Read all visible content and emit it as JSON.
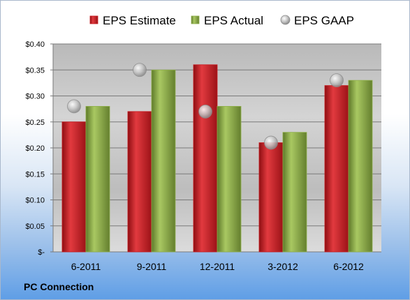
{
  "company": "PC Connection",
  "colors": {
    "estimate": "#c8191f",
    "actual": "#8fb04a",
    "gaap": "#a8a8a8"
  },
  "chart_data": {
    "type": "bar",
    "categories": [
      "6-2011",
      "9-2011",
      "12-2011",
      "3-2012",
      "6-2012"
    ],
    "series": [
      {
        "name": "EPS Estimate",
        "kind": "bar",
        "values": [
          0.25,
          0.27,
          0.36,
          0.21,
          0.32
        ]
      },
      {
        "name": "EPS Actual",
        "kind": "bar",
        "values": [
          0.28,
          0.35,
          0.28,
          0.23,
          0.33
        ]
      },
      {
        "name": "EPS GAAP",
        "kind": "marker",
        "values": [
          0.28,
          0.35,
          0.27,
          0.21,
          0.33
        ]
      }
    ],
    "y_ticks": [
      0.4,
      0.35,
      0.3,
      0.25,
      0.2,
      0.15,
      0.1,
      0.05,
      0
    ],
    "y_tick_labels": [
      "$0.40",
      "$0.35",
      "$0.30",
      "$0.25",
      "$0.20",
      "$0.15",
      "$0.10",
      "$0.05",
      "$-"
    ],
    "ylim": [
      0,
      0.4
    ],
    "grid": true,
    "legend_position": "top"
  }
}
